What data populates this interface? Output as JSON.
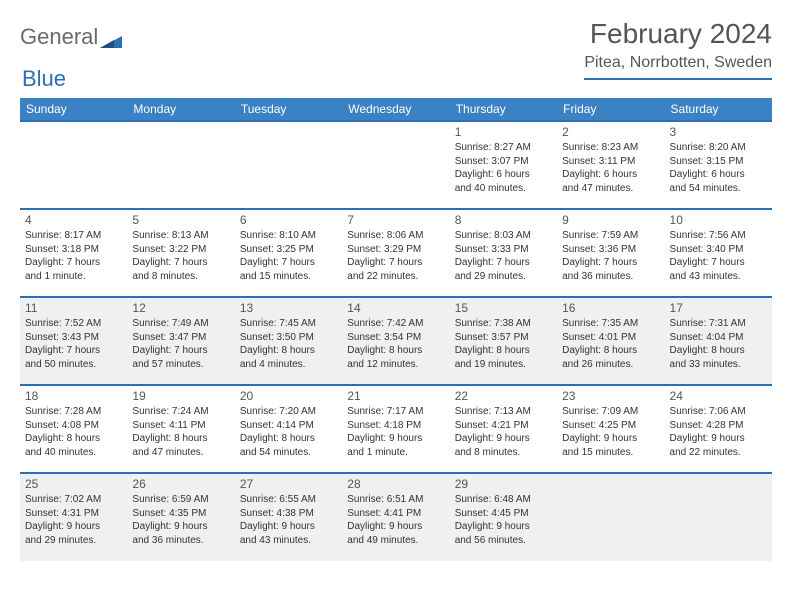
{
  "logo": {
    "part1": "General",
    "part2": "Blue"
  },
  "title": "February 2024",
  "location": "Pitea, Norrbotten, Sweden",
  "colors": {
    "header_bg": "#3b82c4",
    "divider": "#2c6fb3",
    "shaded_row": "#eef0f2",
    "text": "#333333",
    "title_text": "#555555"
  },
  "weekdays": [
    "Sunday",
    "Monday",
    "Tuesday",
    "Wednesday",
    "Thursday",
    "Friday",
    "Saturday"
  ],
  "weeks": [
    {
      "shaded": false,
      "days": [
        null,
        null,
        null,
        null,
        {
          "num": "1",
          "sunrise": "Sunrise: 8:27 AM",
          "sunset": "Sunset: 3:07 PM",
          "day1": "Daylight: 6 hours",
          "day2": "and 40 minutes."
        },
        {
          "num": "2",
          "sunrise": "Sunrise: 8:23 AM",
          "sunset": "Sunset: 3:11 PM",
          "day1": "Daylight: 6 hours",
          "day2": "and 47 minutes."
        },
        {
          "num": "3",
          "sunrise": "Sunrise: 8:20 AM",
          "sunset": "Sunset: 3:15 PM",
          "day1": "Daylight: 6 hours",
          "day2": "and 54 minutes."
        }
      ]
    },
    {
      "shaded": false,
      "days": [
        {
          "num": "4",
          "sunrise": "Sunrise: 8:17 AM",
          "sunset": "Sunset: 3:18 PM",
          "day1": "Daylight: 7 hours",
          "day2": "and 1 minute."
        },
        {
          "num": "5",
          "sunrise": "Sunrise: 8:13 AM",
          "sunset": "Sunset: 3:22 PM",
          "day1": "Daylight: 7 hours",
          "day2": "and 8 minutes."
        },
        {
          "num": "6",
          "sunrise": "Sunrise: 8:10 AM",
          "sunset": "Sunset: 3:25 PM",
          "day1": "Daylight: 7 hours",
          "day2": "and 15 minutes."
        },
        {
          "num": "7",
          "sunrise": "Sunrise: 8:06 AM",
          "sunset": "Sunset: 3:29 PM",
          "day1": "Daylight: 7 hours",
          "day2": "and 22 minutes."
        },
        {
          "num": "8",
          "sunrise": "Sunrise: 8:03 AM",
          "sunset": "Sunset: 3:33 PM",
          "day1": "Daylight: 7 hours",
          "day2": "and 29 minutes."
        },
        {
          "num": "9",
          "sunrise": "Sunrise: 7:59 AM",
          "sunset": "Sunset: 3:36 PM",
          "day1": "Daylight: 7 hours",
          "day2": "and 36 minutes."
        },
        {
          "num": "10",
          "sunrise": "Sunrise: 7:56 AM",
          "sunset": "Sunset: 3:40 PM",
          "day1": "Daylight: 7 hours",
          "day2": "and 43 minutes."
        }
      ]
    },
    {
      "shaded": true,
      "days": [
        {
          "num": "11",
          "sunrise": "Sunrise: 7:52 AM",
          "sunset": "Sunset: 3:43 PM",
          "day1": "Daylight: 7 hours",
          "day2": "and 50 minutes."
        },
        {
          "num": "12",
          "sunrise": "Sunrise: 7:49 AM",
          "sunset": "Sunset: 3:47 PM",
          "day1": "Daylight: 7 hours",
          "day2": "and 57 minutes."
        },
        {
          "num": "13",
          "sunrise": "Sunrise: 7:45 AM",
          "sunset": "Sunset: 3:50 PM",
          "day1": "Daylight: 8 hours",
          "day2": "and 4 minutes."
        },
        {
          "num": "14",
          "sunrise": "Sunrise: 7:42 AM",
          "sunset": "Sunset: 3:54 PM",
          "day1": "Daylight: 8 hours",
          "day2": "and 12 minutes."
        },
        {
          "num": "15",
          "sunrise": "Sunrise: 7:38 AM",
          "sunset": "Sunset: 3:57 PM",
          "day1": "Daylight: 8 hours",
          "day2": "and 19 minutes."
        },
        {
          "num": "16",
          "sunrise": "Sunrise: 7:35 AM",
          "sunset": "Sunset: 4:01 PM",
          "day1": "Daylight: 8 hours",
          "day2": "and 26 minutes."
        },
        {
          "num": "17",
          "sunrise": "Sunrise: 7:31 AM",
          "sunset": "Sunset: 4:04 PM",
          "day1": "Daylight: 8 hours",
          "day2": "and 33 minutes."
        }
      ]
    },
    {
      "shaded": false,
      "days": [
        {
          "num": "18",
          "sunrise": "Sunrise: 7:28 AM",
          "sunset": "Sunset: 4:08 PM",
          "day1": "Daylight: 8 hours",
          "day2": "and 40 minutes."
        },
        {
          "num": "19",
          "sunrise": "Sunrise: 7:24 AM",
          "sunset": "Sunset: 4:11 PM",
          "day1": "Daylight: 8 hours",
          "day2": "and 47 minutes."
        },
        {
          "num": "20",
          "sunrise": "Sunrise: 7:20 AM",
          "sunset": "Sunset: 4:14 PM",
          "day1": "Daylight: 8 hours",
          "day2": "and 54 minutes."
        },
        {
          "num": "21",
          "sunrise": "Sunrise: 7:17 AM",
          "sunset": "Sunset: 4:18 PM",
          "day1": "Daylight: 9 hours",
          "day2": "and 1 minute."
        },
        {
          "num": "22",
          "sunrise": "Sunrise: 7:13 AM",
          "sunset": "Sunset: 4:21 PM",
          "day1": "Daylight: 9 hours",
          "day2": "and 8 minutes."
        },
        {
          "num": "23",
          "sunrise": "Sunrise: 7:09 AM",
          "sunset": "Sunset: 4:25 PM",
          "day1": "Daylight: 9 hours",
          "day2": "and 15 minutes."
        },
        {
          "num": "24",
          "sunrise": "Sunrise: 7:06 AM",
          "sunset": "Sunset: 4:28 PM",
          "day1": "Daylight: 9 hours",
          "day2": "and 22 minutes."
        }
      ]
    },
    {
      "shaded": true,
      "days": [
        {
          "num": "25",
          "sunrise": "Sunrise: 7:02 AM",
          "sunset": "Sunset: 4:31 PM",
          "day1": "Daylight: 9 hours",
          "day2": "and 29 minutes."
        },
        {
          "num": "26",
          "sunrise": "Sunrise: 6:59 AM",
          "sunset": "Sunset: 4:35 PM",
          "day1": "Daylight: 9 hours",
          "day2": "and 36 minutes."
        },
        {
          "num": "27",
          "sunrise": "Sunrise: 6:55 AM",
          "sunset": "Sunset: 4:38 PM",
          "day1": "Daylight: 9 hours",
          "day2": "and 43 minutes."
        },
        {
          "num": "28",
          "sunrise": "Sunrise: 6:51 AM",
          "sunset": "Sunset: 4:41 PM",
          "day1": "Daylight: 9 hours",
          "day2": "and 49 minutes."
        },
        {
          "num": "29",
          "sunrise": "Sunrise: 6:48 AM",
          "sunset": "Sunset: 4:45 PM",
          "day1": "Daylight: 9 hours",
          "day2": "and 56 minutes."
        },
        null,
        null
      ]
    }
  ]
}
